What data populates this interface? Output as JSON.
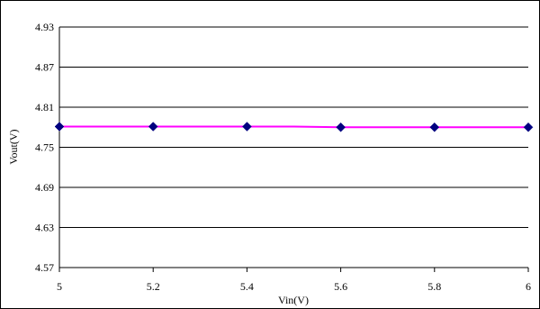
{
  "colors": {
    "line": "#ff00ff",
    "marker": "#000080",
    "grid": "#000000",
    "axis": "#000000",
    "background": "#ffffff"
  },
  "chart_data": {
    "type": "line",
    "title": "",
    "xlabel": "Vin(V)",
    "ylabel": "Vout(V)",
    "xlim": [
      5,
      6
    ],
    "ylim": [
      4.57,
      4.93
    ],
    "x_ticks": [
      "5",
      "5.2",
      "5.4",
      "5.6",
      "5.8",
      "6"
    ],
    "y_ticks": [
      "4.93",
      "4.87",
      "4.81",
      "4.75",
      "4.69",
      "4.63",
      "4.57"
    ],
    "grid": "horizontal",
    "legend": "none",
    "series": [
      {
        "x": [
          5.0,
          5.2,
          5.4,
          5.5,
          5.6,
          5.8,
          6.0
        ],
        "values": [
          4.781,
          4.781,
          4.781,
          4.781,
          4.78,
          4.78,
          4.78
        ],
        "marker_x": [
          5.0,
          5.2,
          5.4,
          5.6,
          5.8,
          6.0
        ],
        "marker_values": [
          4.781,
          4.781,
          4.781,
          4.78,
          4.78,
          4.78
        ],
        "marker": "diamond"
      }
    ]
  }
}
